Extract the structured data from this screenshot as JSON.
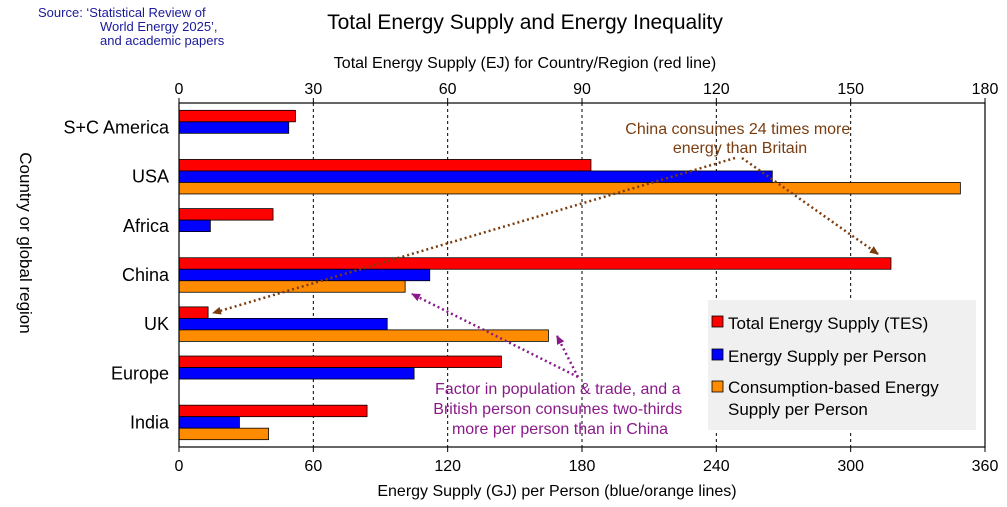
{
  "source": {
    "line1": "Source: ‘Statistical Review of",
    "line2": "World Energy 2025’,",
    "line3": "and academic papers"
  },
  "chart_data": {
    "type": "bar",
    "title": "Total Energy Supply and Energy Inequality",
    "top_axis_label": "Total Energy Supply (EJ) for Country/Region (red line)",
    "bottom_axis_label": "Energy Supply (GJ) per Person (blue/orange lines)",
    "y_axis_label": "Country or global region",
    "top_axis": {
      "min": 0,
      "max": 180,
      "ticks": [
        0,
        30,
        60,
        90,
        120,
        150,
        180
      ]
    },
    "bottom_axis": {
      "min": 0,
      "max": 360,
      "ticks": [
        0,
        60,
        120,
        180,
        240,
        300,
        360
      ]
    },
    "grid": "vertical dashed",
    "legend_position": "bottom-right",
    "categories": [
      "S+C America",
      "USA",
      "Africa",
      "China",
      "UK",
      "Europe",
      "India"
    ],
    "series": [
      {
        "name": "Total Energy Supply (TES)",
        "color": "#ff0000",
        "axis": "top",
        "unit": "EJ",
        "values": [
          26,
          92,
          21,
          159,
          6.5,
          72,
          42
        ]
      },
      {
        "name": "Energy Supply per Person",
        "color": "#0000ff",
        "axis": "bottom",
        "unit": "GJ",
        "values": [
          49,
          265,
          14,
          112,
          93,
          105,
          27
        ]
      },
      {
        "name": "Consumption-based Energy Supply per Person",
        "color": "#ff8c00",
        "axis": "bottom",
        "unit": "GJ",
        "values": [
          null,
          349,
          null,
          101,
          165,
          null,
          40
        ]
      }
    ],
    "annotations": [
      {
        "text_lines": [
          "China consumes 24 times more",
          "energy than Britain"
        ],
        "color": "#7a3d10"
      },
      {
        "text_lines": [
          "Factor in population & trade, and a",
          "British person consumes two-thirds",
          "more per person than in China"
        ],
        "color": "#8a1a8a"
      }
    ]
  }
}
